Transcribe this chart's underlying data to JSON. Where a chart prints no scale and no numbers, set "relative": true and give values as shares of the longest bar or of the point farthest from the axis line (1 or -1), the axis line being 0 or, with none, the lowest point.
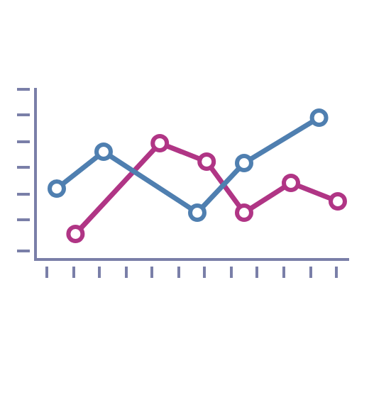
{
  "chart_data": {
    "type": "line",
    "relative": true,
    "marker": "circle",
    "legend": false,
    "categories": [
      null,
      null,
      null,
      null,
      null,
      null,
      null,
      null,
      null,
      null,
      null,
      null,
      null,
      null,
      null,
      null,
      null,
      null,
      null,
      null,
      null,
      null,
      null,
      null,
      null,
      null,
      null,
      null,
      null,
      null,
      null
    ],
    "series": [
      {
        "color": "#4f7fb0",
        "values": [
          0.5,
          null,
          null,
          null,
          null,
          0.76,
          null,
          null,
          null,
          null,
          null,
          null,
          null,
          null,
          null,
          0.33,
          null,
          null,
          null,
          null,
          0.68,
          null,
          null,
          null,
          null,
          null,
          null,
          null,
          1,
          null,
          null
        ]
      },
      {
        "color": "#b03585",
        "values": [
          null,
          null,
          0.18,
          null,
          null,
          null,
          null,
          null,
          null,
          null,
          null,
          0.82,
          null,
          null,
          null,
          null,
          0.69,
          null,
          null,
          null,
          0.33,
          null,
          null,
          null,
          null,
          0.54,
          null,
          null,
          null,
          null,
          0.41
        ]
      }
    ]
  }
}
